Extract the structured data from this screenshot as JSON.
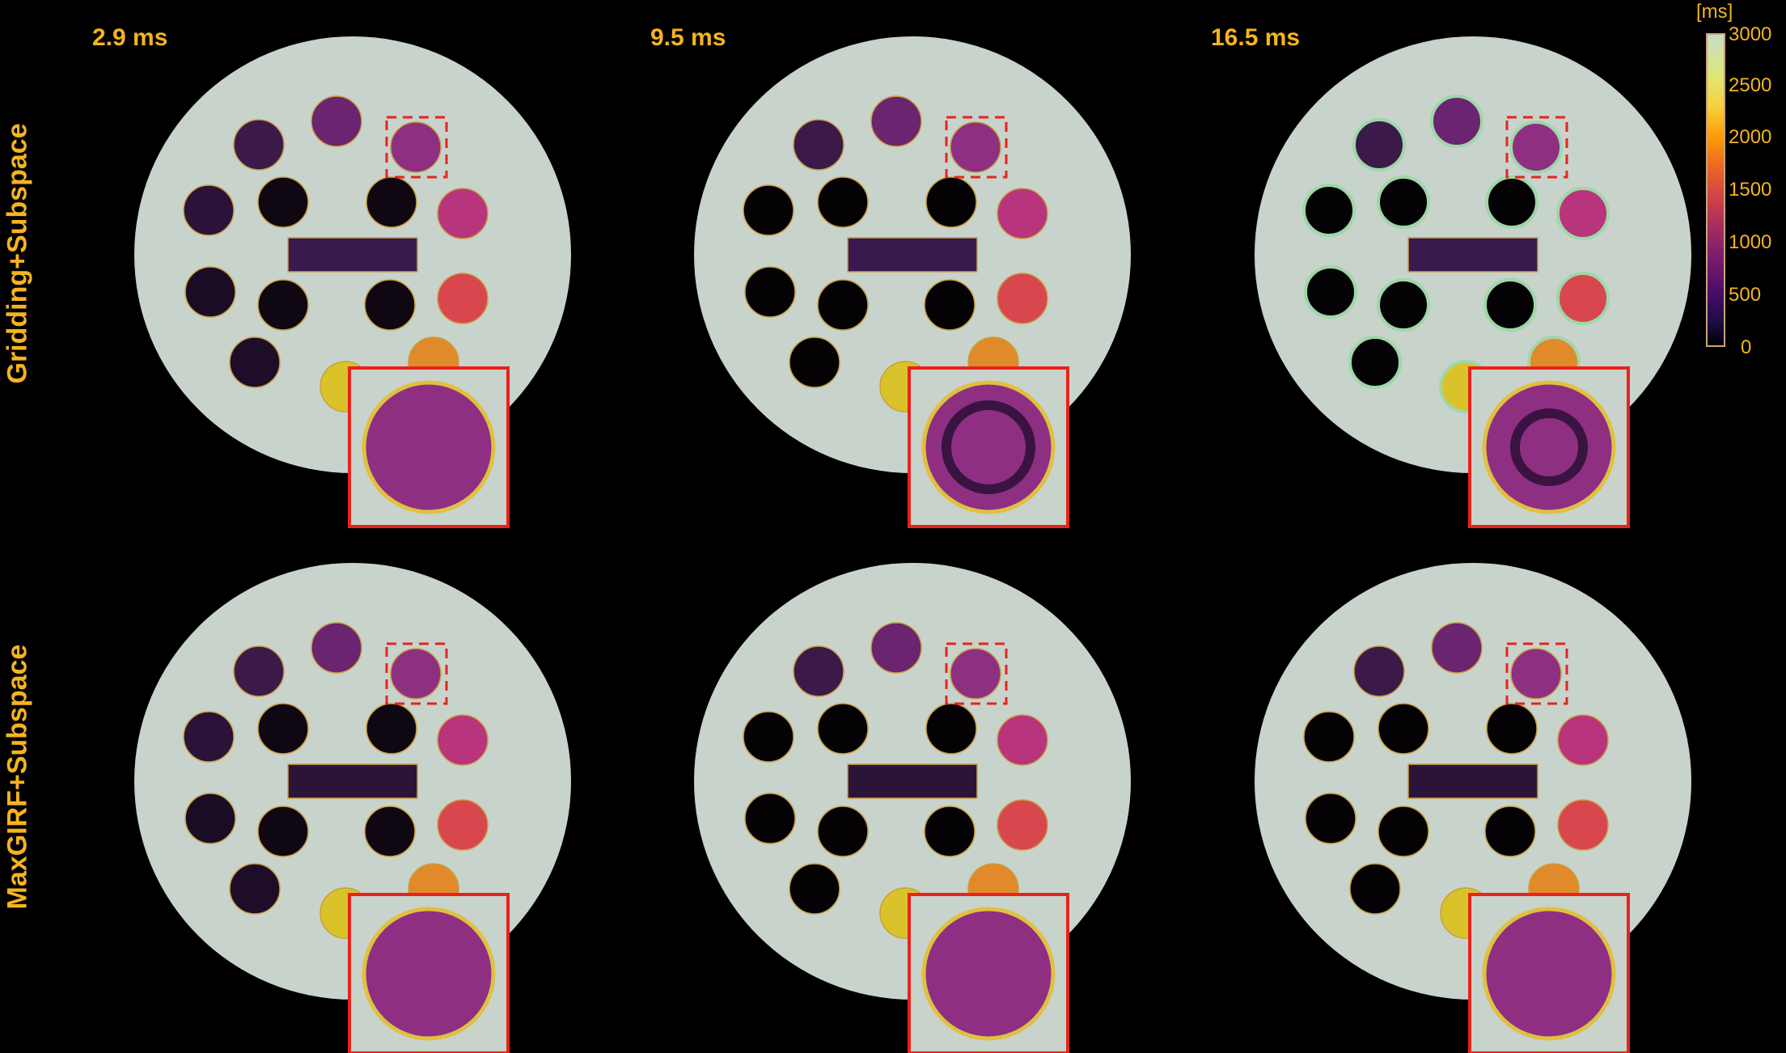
{
  "columns": [
    {
      "label": "2.9 ms"
    },
    {
      "label": "9.5 ms"
    },
    {
      "label": "16.5 ms"
    }
  ],
  "rows": [
    {
      "label": "Gridding+Subspace"
    },
    {
      "label": "MaxGIRF+Subspace"
    }
  ],
  "colorbar": {
    "unit": "[ms]",
    "ticks": [
      "3000",
      "2500",
      "2000",
      "1500",
      "1000",
      "500",
      "0"
    ],
    "range": [
      0,
      3000
    ]
  },
  "colors": {
    "label": "#f5b41e",
    "phantom_background": "#c8d3cb",
    "zoom_box": "#e8231e"
  }
}
